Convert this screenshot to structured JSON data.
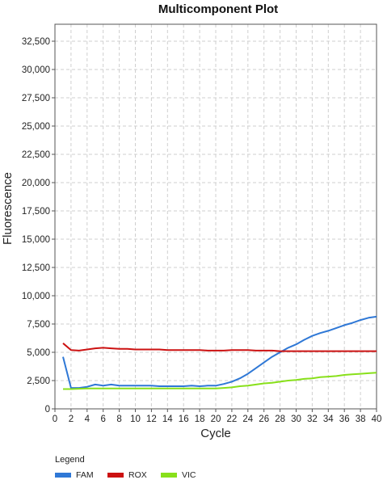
{
  "chart_data": {
    "type": "line",
    "title": "Multicomponent Plot",
    "xlabel": "Cycle",
    "ylabel": "Fluorescence",
    "xlim": [
      0,
      40
    ],
    "ylim": [
      0,
      34000
    ],
    "x_ticks": [
      "0",
      "2",
      "4",
      "6",
      "8",
      "10",
      "12",
      "14",
      "16",
      "18",
      "20",
      "22",
      "24",
      "26",
      "28",
      "30",
      "32",
      "34",
      "36",
      "38",
      "40"
    ],
    "y_ticks": [
      "0",
      "2,500",
      "5,000",
      "7,500",
      "10,000",
      "12,500",
      "15,000",
      "17,500",
      "20,000",
      "22,500",
      "25,000",
      "27,500",
      "30,000",
      "32,500"
    ],
    "grid": true,
    "legend": {
      "title": "Legend",
      "placement": "bottom-left"
    },
    "x": [
      1,
      2,
      3,
      4,
      5,
      6,
      7,
      8,
      9,
      10,
      11,
      12,
      13,
      14,
      15,
      16,
      17,
      18,
      19,
      20,
      21,
      22,
      23,
      24,
      25,
      26,
      27,
      28,
      29,
      30,
      31,
      32,
      33,
      34,
      35,
      36,
      37,
      38,
      39,
      40
    ],
    "series": [
      {
        "name": "FAM",
        "color": "#2f78d6",
        "values": [
          4600,
          1850,
          1850,
          1950,
          2150,
          2050,
          2150,
          2050,
          2050,
          2050,
          2050,
          2050,
          2000,
          2000,
          2000,
          2000,
          2050,
          2000,
          2050,
          2050,
          2200,
          2400,
          2700,
          3100,
          3600,
          4100,
          4600,
          5000,
          5400,
          5700,
          6100,
          6450,
          6700,
          6900,
          7150,
          7400,
          7600,
          7850,
          8050,
          8150
        ]
      },
      {
        "name": "ROX",
        "color": "#cc1111",
        "values": [
          5800,
          5200,
          5150,
          5250,
          5350,
          5400,
          5350,
          5300,
          5300,
          5250,
          5250,
          5250,
          5250,
          5200,
          5200,
          5200,
          5200,
          5200,
          5150,
          5150,
          5150,
          5200,
          5200,
          5200,
          5150,
          5150,
          5150,
          5100,
          5100,
          5100,
          5100,
          5100,
          5100,
          5100,
          5100,
          5100,
          5100,
          5100,
          5100,
          5100
        ]
      },
      {
        "name": "VIC",
        "color": "#88e01a",
        "values": [
          1750,
          1750,
          1780,
          1800,
          1800,
          1800,
          1800,
          1800,
          1800,
          1800,
          1800,
          1800,
          1800,
          1800,
          1800,
          1800,
          1800,
          1800,
          1800,
          1800,
          1850,
          1900,
          2000,
          2050,
          2150,
          2250,
          2300,
          2400,
          2500,
          2550,
          2650,
          2700,
          2800,
          2850,
          2900,
          3000,
          3050,
          3100,
          3150,
          3200
        ]
      }
    ]
  }
}
